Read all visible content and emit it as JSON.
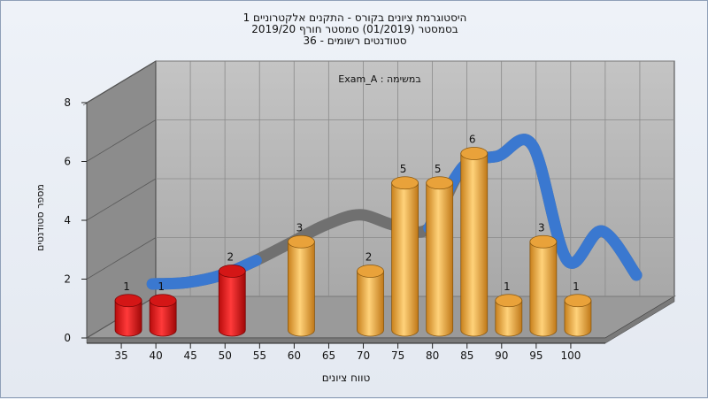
{
  "chart_data": {
    "type": "bar",
    "title_lines": [
      "היסטוגרמת ציונים בקורס - התקנים אלקטרוניים 1",
      "בסמסטר  (01/2019)  סמסטר חורף 2019/20",
      "סטודנטים רשומים - 36"
    ],
    "annotation": "במשימה : Exam_A",
    "xlabel": "טווח ציונים",
    "ylabel": "מספר סטודנטים",
    "x_ticks": [
      "35",
      "40",
      "45",
      "50",
      "55",
      "60",
      "65",
      "70",
      "75",
      "80",
      "85",
      "90",
      "95",
      "100"
    ],
    "y_ticks": [
      "0",
      "2",
      "4",
      "6",
      "8"
    ],
    "ylim": [
      0,
      8
    ],
    "bars": [
      {
        "x": 35,
        "value": 1,
        "label": "1",
        "color": "red"
      },
      {
        "x": 40,
        "value": 1,
        "label": "1",
        "color": "red"
      },
      {
        "x": 50,
        "value": 2,
        "label": "2",
        "color": "red"
      },
      {
        "x": 60,
        "value": 3,
        "label": "3",
        "color": "orange"
      },
      {
        "x": 70,
        "value": 2,
        "label": "2",
        "color": "orange"
      },
      {
        "x": 75,
        "value": 5,
        "label": "5",
        "color": "orange"
      },
      {
        "x": 80,
        "value": 5,
        "label": "5",
        "color": "orange"
      },
      {
        "x": 85,
        "value": 6,
        "label": "6",
        "color": "orange"
      },
      {
        "x": 90,
        "value": 1,
        "label": "1",
        "color": "orange"
      },
      {
        "x": 95,
        "value": 3,
        "label": "3",
        "color": "orange"
      },
      {
        "x": 100,
        "value": 1,
        "label": "1",
        "color": "orange"
      }
    ],
    "curve": [
      {
        "x": 35,
        "value": 1.2
      },
      {
        "x": 40,
        "value": 1.25
      },
      {
        "x": 45,
        "value": 1.5
      },
      {
        "x": 50,
        "value": 2.0
      },
      {
        "x": 55,
        "value": 2.6
      },
      {
        "x": 60,
        "value": 3.2
      },
      {
        "x": 65,
        "value": 3.55
      },
      {
        "x": 70,
        "value": 3.2
      },
      {
        "x": 75,
        "value": 3.1
      },
      {
        "x": 80,
        "value": 5.2
      },
      {
        "x": 85,
        "value": 5.55
      },
      {
        "x": 90,
        "value": 5.9
      },
      {
        "x": 95,
        "value": 2.0
      },
      {
        "x": 100,
        "value": 3.0
      },
      {
        "x": 105,
        "value": 1.5
      }
    ],
    "colors": {
      "red": "#e01818",
      "orange": "#f0a830",
      "curve_blue": "#3a78d0",
      "curve_gray": "#707070",
      "floor": "#9a9a9a",
      "back_wall": "#b4b4b4",
      "side_wall": "#8c8c8c"
    }
  }
}
